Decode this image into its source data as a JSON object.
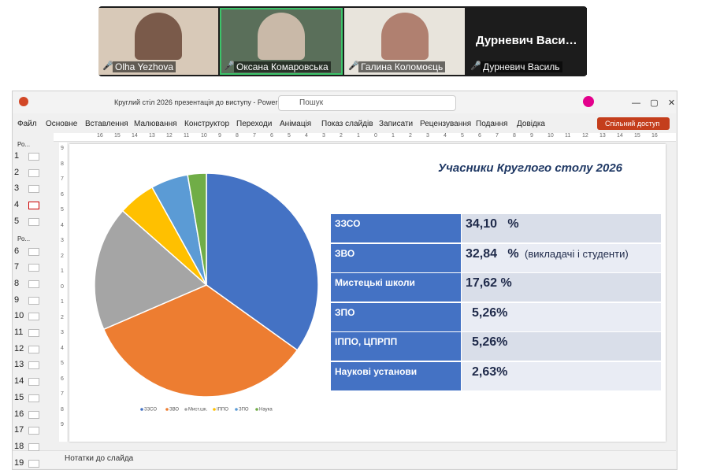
{
  "call": {
    "participants": [
      {
        "name": "Olha Yezhova"
      },
      {
        "name": "Оксана Комаровська"
      },
      {
        "name": "Галина Коломоєць"
      },
      {
        "name": "Дурневич Василь"
      }
    ]
  },
  "app": {
    "window_title": "Круглий стіл 2026 презентація до виступу  -  PowerP...",
    "search": "Пошук",
    "menu": [
      "Файл",
      "Основне",
      "Вставлення",
      "Малювання",
      "Конструктор",
      "Переходи",
      "Анімація",
      "Показ слайдів",
      "Записати",
      "Рецензування",
      "Подання",
      "Довідка"
    ],
    "share": "Спільний доступ",
    "sections": [
      "Ро...",
      "Ро..."
    ],
    "slides": [
      1,
      2,
      3,
      4,
      5,
      6,
      7,
      8,
      9,
      10,
      11,
      12,
      13,
      14,
      15,
      16,
      17,
      18,
      19
    ],
    "hruler": [
      16,
      15,
      14,
      13,
      12,
      11,
      10,
      9,
      8,
      7,
      6,
      5,
      4,
      3,
      2,
      1,
      0,
      1,
      2,
      3,
      4,
      5,
      6,
      7,
      8,
      9,
      10,
      11,
      12,
      13,
      14,
      15,
      16
    ],
    "vruler": [
      9,
      8,
      7,
      6,
      5,
      4,
      3,
      2,
      1,
      0,
      1,
      2,
      3,
      4,
      5,
      6,
      7,
      8,
      9
    ],
    "notes": "Нотатки до слайда"
  },
  "slide": {
    "title": "Учасники Круглого столу 2026",
    "table": {
      "rows": [
        [
          "ЗЗСО",
          "34,10   %"
        ],
        [
          "ЗВО",
          "32,84   %"
        ],
        [
          "Мистецькі школи",
          "17,62 %"
        ],
        [
          "ЗПО",
          "5,26%"
        ],
        [
          "ІППО, ЦПРПП",
          "5,26%"
        ],
        [
          "Наукові установи",
          "2,63%"
        ]
      ]
    },
    "note": "(викладачі і студенти)"
  },
  "chart_data": {
    "type": "pie",
    "categories": [
      "ЗЗСО",
      "ЗВО",
      "Мист.шк.",
      "ІППО",
      "ЗПО",
      "Наука"
    ],
    "values": [
      34.1,
      32.84,
      17.62,
      5.26,
      5.26,
      2.63
    ],
    "colors": [
      "#4472c4",
      "#ed7d31",
      "#a5a5a5",
      "#ffc000",
      "#5b9bd5",
      "#70ad47"
    ],
    "legend": "bottom"
  }
}
